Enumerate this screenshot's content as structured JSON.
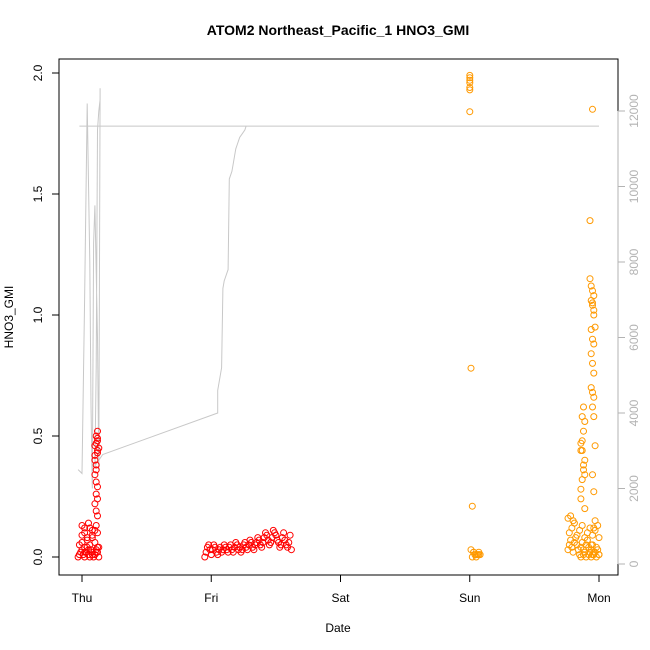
{
  "chart_data": {
    "type": "scatter",
    "title": "ATOM2 Northeast_Pacific_1 HNO3_GMI",
    "xlabel": "Date",
    "ylabel": "HNO3_GMI",
    "x_ticks": [
      "Thu",
      "Fri",
      "Sat",
      "Sun",
      "Mon"
    ],
    "xlim": [
      0,
      4
    ],
    "ylim": [
      0,
      2
    ],
    "y_ticks": [
      "0.0",
      "0.5",
      "1.0",
      "1.5",
      "2.0"
    ],
    "y_tick_values": [
      0,
      0.5,
      1.0,
      1.5,
      2.0
    ],
    "y2_ticks": [
      "0",
      "2000",
      "4000",
      "6000",
      "8000",
      "10000",
      "12000"
    ],
    "y2_tick_values": [
      0,
      2000,
      4000,
      6000,
      8000,
      10000,
      12000
    ],
    "y2lim": [
      0,
      12800
    ],
    "grid": false,
    "colors": {
      "series_1": "#ff0000",
      "series_2": "#ff9900",
      "altitude": "#c8c8c8"
    },
    "series": [
      {
        "x": [
          -0.03,
          -0.02,
          -0.01,
          0.0,
          0.01,
          0.02,
          0.03,
          0.04,
          0.05,
          0.06,
          0.07,
          0.08,
          0.09,
          0.1,
          0.11,
          0.12,
          0.13,
          -0.02,
          0.0,
          0.02,
          0.04,
          0.06,
          0.08,
          0.1,
          0.12,
          0.0,
          0.02,
          0.04,
          0.06,
          0.08,
          0.1,
          0.12,
          0.0,
          0.02,
          0.05,
          0.08,
          0.11,
          0.02,
          0.05,
          0.08,
          0.11,
          0.13,
          0.13,
          0.12,
          0.11,
          0.12,
          0.1,
          0.1,
          0.11,
          0.12,
          0.1,
          0.11,
          0.12,
          0.11,
          0.12,
          0.1,
          0.11,
          0.12,
          0.12,
          0.11,
          0.1,
          0.12,
          0.11
        ],
        "y": [
          0.0,
          0.01,
          0.02,
          0.03,
          0.01,
          0.0,
          0.02,
          0.04,
          0.01,
          0.0,
          0.03,
          0.02,
          0.0,
          0.01,
          0.03,
          0.02,
          0.0,
          0.05,
          0.06,
          0.04,
          0.07,
          0.05,
          0.08,
          0.06,
          0.04,
          0.09,
          0.1,
          0.08,
          0.12,
          0.09,
          0.11,
          0.1,
          0.13,
          0.12,
          0.14,
          0.11,
          0.13,
          0.02,
          0.03,
          0.01,
          0.02,
          0.04,
          0.45,
          0.48,
          0.5,
          0.52,
          0.42,
          0.4,
          0.38,
          0.44,
          0.34,
          0.31,
          0.29,
          0.26,
          0.24,
          0.22,
          0.19,
          0.17,
          0.49,
          0.47,
          0.46,
          0.43,
          0.36
        ]
      },
      {
        "x": [
          0.95,
          0.96,
          0.97,
          0.98,
          0.99,
          1.0,
          1.01,
          1.02,
          1.03,
          1.04,
          1.05,
          1.06,
          1.07,
          1.08,
          1.09,
          1.1,
          1.11,
          1.12,
          1.13,
          1.14,
          1.15,
          1.16,
          1.17,
          1.18,
          1.19,
          1.2,
          1.21,
          1.22,
          1.23,
          1.24,
          1.25,
          1.26,
          1.27,
          1.28,
          1.29,
          1.3,
          1.31,
          1.32,
          1.33,
          1.34,
          1.35,
          1.36,
          1.37,
          1.38,
          1.39,
          1.4,
          1.41,
          1.42,
          1.43,
          1.44,
          1.45,
          1.46,
          1.47,
          1.48,
          1.49,
          1.5,
          1.51,
          1.52,
          1.53,
          1.54,
          1.55,
          1.56,
          1.57,
          1.58,
          1.59,
          1.6,
          1.61,
          1.62
        ],
        "y": [
          0.0,
          0.02,
          0.04,
          0.05,
          0.03,
          0.01,
          0.03,
          0.05,
          0.04,
          0.02,
          0.01,
          0.03,
          0.04,
          0.02,
          0.03,
          0.05,
          0.04,
          0.03,
          0.02,
          0.04,
          0.05,
          0.03,
          0.02,
          0.04,
          0.06,
          0.05,
          0.03,
          0.04,
          0.02,
          0.03,
          0.05,
          0.06,
          0.04,
          0.03,
          0.05,
          0.07,
          0.06,
          0.04,
          0.03,
          0.05,
          0.06,
          0.08,
          0.07,
          0.05,
          0.04,
          0.06,
          0.08,
          0.1,
          0.09,
          0.07,
          0.05,
          0.06,
          0.08,
          0.11,
          0.1,
          0.09,
          0.07,
          0.06,
          0.04,
          0.05,
          0.08,
          0.1,
          0.07,
          0.05,
          0.04,
          0.06,
          0.09,
          0.03
        ]
      },
      {
        "x": [
          3.0,
          3.0,
          3.0,
          3.0,
          3.0,
          3.0,
          3.0,
          3.01,
          3.02,
          3.03,
          3.04,
          3.05,
          3.06,
          3.07,
          3.08,
          3.01,
          3.02,
          3.03,
          3.05,
          3.07
        ],
        "y": [
          1.99,
          1.98,
          1.97,
          1.96,
          1.94,
          1.93,
          1.84,
          0.78,
          0.21,
          0.02,
          0.01,
          0.01,
          0.01,
          0.02,
          0.01,
          0.03,
          0.0,
          0.02,
          0.0,
          0.01
        ]
      },
      {
        "x": [
          3.76,
          3.77,
          3.78,
          3.79,
          3.8,
          3.81,
          3.82,
          3.83,
          3.84,
          3.85,
          3.86,
          3.87,
          3.88,
          3.89,
          3.9,
          3.91,
          3.92,
          3.93,
          3.94,
          3.95,
          3.96,
          3.97,
          3.98,
          3.99,
          4.0,
          3.77,
          3.79,
          3.81,
          3.83,
          3.85,
          3.87,
          3.89,
          3.91,
          3.93,
          3.95,
          3.97,
          3.99,
          3.76,
          3.78,
          3.8,
          3.86,
          3.88,
          3.9,
          3.92,
          3.94,
          3.96,
          3.98,
          4.0,
          3.86,
          3.87,
          3.88,
          3.89,
          3.86,
          3.87,
          3.88,
          3.89,
          3.86,
          3.87,
          3.88,
          3.89,
          3.86,
          3.87,
          3.88,
          3.89,
          3.93,
          3.94,
          3.95,
          3.96,
          3.94,
          3.95,
          3.96,
          3.94,
          3.95,
          3.96,
          3.94,
          3.95,
          3.96,
          3.94,
          3.95,
          3.96,
          3.95,
          3.96,
          3.97,
          3.95,
          3.96,
          3.97,
          3.95,
          3.96,
          3.97,
          3.93,
          3.95,
          3.96,
          4.0,
          3.94,
          3.95
        ],
        "y": [
          0.03,
          0.05,
          0.07,
          0.04,
          0.02,
          0.06,
          0.08,
          0.05,
          0.03,
          0.01,
          0.04,
          0.06,
          0.03,
          0.02,
          0.05,
          0.07,
          0.04,
          0.02,
          0.03,
          0.05,
          0.01,
          0.02,
          0.04,
          0.03,
          0.01,
          0.1,
          0.12,
          0.14,
          0.09,
          0.11,
          0.13,
          0.08,
          0.1,
          0.12,
          0.09,
          0.11,
          0.13,
          0.16,
          0.17,
          0.15,
          0.0,
          0.01,
          0.0,
          0.01,
          0.0,
          0.02,
          0.0,
          0.01,
          0.28,
          0.32,
          0.36,
          0.4,
          0.44,
          0.48,
          0.52,
          0.56,
          0.24,
          0.58,
          0.62,
          0.2,
          0.47,
          0.44,
          0.38,
          0.34,
          1.15,
          1.12,
          1.1,
          1.08,
          1.06,
          1.04,
          1.02,
          0.94,
          0.9,
          0.88,
          0.84,
          0.8,
          0.76,
          0.7,
          0.68,
          0.66,
          0.62,
          0.58,
          0.46,
          0.34,
          0.27,
          0.15,
          1.05,
          1.0,
          0.95,
          1.39,
          1.85,
          0.12,
          0.08,
          0.05,
          0.01
        ]
      }
    ],
    "altitude_line": {
      "x": [
        -0.03,
        0.0,
        0.02,
        0.04,
        0.06,
        0.07,
        0.08,
        0.09,
        0.1,
        0.12,
        0.13,
        0.14,
        0.14,
        0.14,
        0.14,
        0.13,
        0.12,
        0.11,
        0.1,
        0.12,
        0.14,
        0.16,
        1.05,
        1.05,
        1.05,
        1.05,
        1.06,
        1.07,
        1.08,
        1.09,
        1.1,
        1.11,
        1.12,
        1.13,
        1.14,
        1.15,
        1.16,
        1.17,
        1.18,
        1.19,
        1.2,
        1.21,
        1.22,
        1.24,
        1.26,
        1.27,
        1.28,
        1.29,
        1.3,
        1.3,
        1.31,
        1.32,
        1.33,
        1.33,
        1.0,
        0.9,
        0.8,
        0.7,
        0.6,
        0.5,
        0.4,
        0.3,
        0.2,
        0.14,
        0.12,
        0.1,
        0.08,
        0.06,
        0.04,
        0.02,
        0.0,
        -0.02,
        0.14,
        2.0,
        2.2,
        2.4,
        2.6,
        2.8,
        3.0,
        3.05,
        3.06,
        3.06,
        3.06,
        3.07,
        3.06,
        3.0,
        3.0,
        3.0,
        3.02,
        3.04,
        3.06,
        3.2,
        3.4,
        3.6,
        3.7,
        3.75,
        3.76,
        3.77,
        3.78,
        3.79,
        3.8,
        3.81,
        3.82,
        3.83,
        3.84,
        3.85,
        3.86,
        3.87,
        3.88,
        3.89,
        3.9,
        3.91,
        3.92,
        3.93,
        3.94,
        3.95,
        3.96,
        3.97,
        3.98,
        3.99,
        4.0,
        4.0,
        3.8,
        3.6,
        3.4,
        3.2,
        3.0
      ],
      "y": [
        2500,
        2400,
        7000,
        12200,
        8000,
        4200,
        2000,
        8500,
        9500,
        6000,
        2500,
        12600,
        12500,
        12400,
        12300,
        12000,
        11500,
        5200,
        2600,
        2700,
        2800,
        2900,
        4000,
        4200,
        4400,
        4600,
        4800,
        5000,
        5200,
        7300,
        7500,
        7600,
        7700,
        7800,
        10200,
        10300,
        10400,
        10600,
        10800,
        11000,
        11100,
        11200,
        11300,
        11400,
        11500,
        11600,
        11600,
        11600,
        11600,
        11600,
        11600,
        11600,
        11600,
        11600,
        11600,
        11600,
        11600,
        11600,
        11600,
        11600,
        11600,
        11600,
        11600,
        11600,
        11600,
        11600,
        11600,
        11600,
        11600,
        11600,
        11600,
        11600,
        11600,
        11600,
        11600,
        11600,
        11600,
        11600,
        11600,
        11600,
        11600,
        11600,
        11600,
        11600,
        11600,
        11600,
        11600,
        11600,
        11600,
        11600,
        11600,
        11600,
        11600,
        11600,
        11600,
        11600,
        11600,
        11600,
        11600,
        11600,
        11600,
        11600,
        11600,
        11600,
        11600,
        11600,
        11600,
        11600,
        11600,
        11600,
        11600,
        11600,
        11600,
        11600,
        11600,
        11600,
        11600,
        11600,
        11600,
        11600,
        11600,
        11600,
        11600,
        11600,
        11600,
        11600,
        11600
      ]
    }
  }
}
